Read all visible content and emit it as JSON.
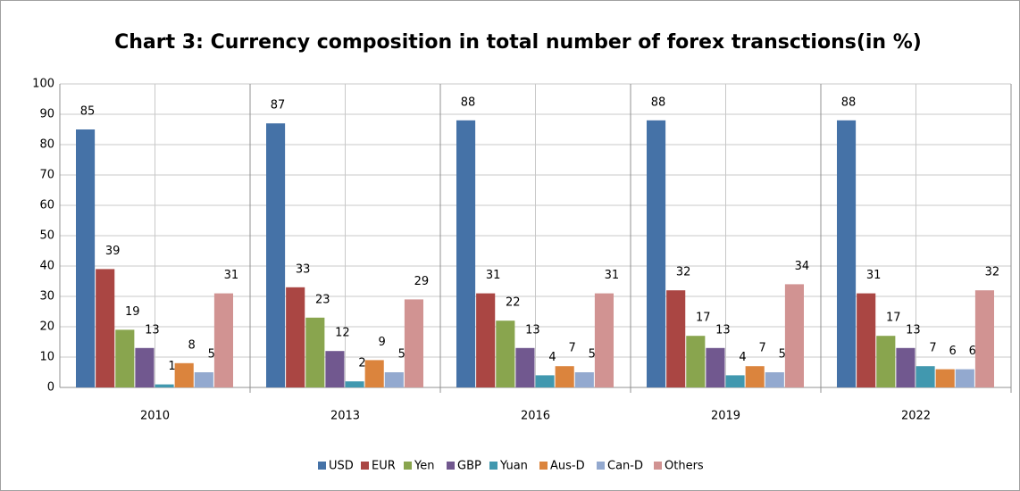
{
  "chart_data": {
    "type": "bar",
    "title": "Chart 3: Currency composition in total number of forex transctions(in %)",
    "categories": [
      "2010",
      "2013",
      "2016",
      "2019",
      "2022"
    ],
    "series": [
      {
        "name": "USD",
        "color": "#4572a7",
        "values": [
          85,
          87,
          88,
          88,
          88
        ]
      },
      {
        "name": "EUR",
        "color": "#aa4643",
        "values": [
          39,
          33,
          31,
          32,
          31
        ]
      },
      {
        "name": "Yen",
        "color": "#89a54e",
        "values": [
          19,
          23,
          22,
          17,
          17
        ]
      },
      {
        "name": "GBP",
        "color": "#71588f",
        "values": [
          13,
          12,
          13,
          13,
          13
        ]
      },
      {
        "name": "Yuan",
        "color": "#4198af",
        "values": [
          1,
          2,
          4,
          4,
          7
        ]
      },
      {
        "name": "Aus-D",
        "color": "#db843d",
        "values": [
          8,
          9,
          7,
          7,
          6
        ]
      },
      {
        "name": "Can-D",
        "color": "#93a9cf",
        "values": [
          5,
          5,
          5,
          5,
          6
        ]
      },
      {
        "name": "Others",
        "color": "#d19392",
        "values": [
          31,
          29,
          31,
          34,
          32
        ]
      }
    ],
    "ylim": [
      0,
      100
    ],
    "yticks": [
      0,
      10,
      20,
      30,
      40,
      50,
      60,
      70,
      80,
      90,
      100
    ],
    "grid": true,
    "legend": "bottom"
  }
}
